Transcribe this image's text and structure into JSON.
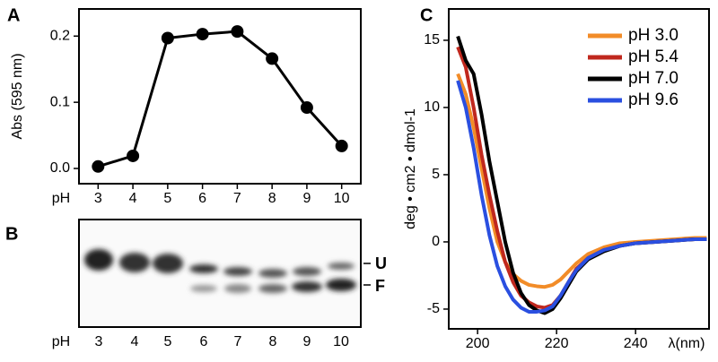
{
  "chart_data": [
    {
      "type": "line",
      "label": "A",
      "y_label": "Abs (595 nm)",
      "x_label": "pH",
      "x": [
        3,
        4,
        5,
        6,
        7,
        8,
        9,
        10
      ],
      "values": [
        0.003,
        0.019,
        0.197,
        0.203,
        0.207,
        0.166,
        0.092,
        0.034
      ],
      "color": "#000000",
      "markers": true,
      "xlim": [
        2.45,
        10.55
      ],
      "ylim": [
        -0.023,
        0.241
      ],
      "xticks": [
        3,
        4,
        5,
        6,
        7,
        8,
        9,
        10
      ],
      "yticks": [
        {
          "value": 0,
          "label": "0.0"
        },
        0.1,
        0.2
      ]
    },
    {
      "type": "line",
      "label": "C",
      "y_label": "deg • cm2 • dmol-1",
      "x_label": "λ(nm)",
      "x": [
        195,
        197,
        199,
        201,
        203,
        205,
        207,
        209,
        211,
        213,
        215,
        217,
        219,
        221,
        223,
        225,
        228,
        232,
        236,
        240,
        245,
        250,
        255,
        258
      ],
      "series": [
        {
          "name": "pH 3.0",
          "color": "#f28c28",
          "values": [
            12.5,
            11,
            8.5,
            5.5,
            2.5,
            0,
            -1.5,
            -2.4,
            -2.9,
            -3.2,
            -3.3,
            -3.35,
            -3.2,
            -2.8,
            -2.2,
            -1.6,
            -0.9,
            -0.4,
            -0.1,
            0,
            0.1,
            0.2,
            0.3,
            0.3
          ]
        },
        {
          "name": "pH 5.4",
          "color": "#c0281e",
          "values": [
            14.5,
            13,
            10,
            6.5,
            3.5,
            0.8,
            -1.5,
            -3,
            -4,
            -4.5,
            -4.8,
            -4.9,
            -4.7,
            -4,
            -3,
            -2,
            -1.2,
            -0.6,
            -0.3,
            -0.1,
            0,
            0.1,
            0.2,
            0.2
          ]
        },
        {
          "name": "pH 7.0",
          "color": "#000000",
          "values": [
            15.3,
            13.5,
            12.5,
            9.5,
            6,
            3,
            0,
            -2.3,
            -3.8,
            -4.7,
            -5.1,
            -5.3,
            -5,
            -4.2,
            -3.2,
            -2.2,
            -1.3,
            -0.7,
            -0.3,
            -0.1,
            0,
            0.1,
            0.2,
            0.2
          ]
        },
        {
          "name": "pH 9.6",
          "color": "#2a4fe0",
          "values": [
            12,
            10,
            7,
            3.5,
            0.5,
            -1.8,
            -3.3,
            -4.3,
            -4.9,
            -5.2,
            -5.2,
            -5.1,
            -4.8,
            -4,
            -3,
            -2.1,
            -1.2,
            -0.6,
            -0.3,
            -0.1,
            0,
            0.1,
            0.2,
            0.2
          ]
        }
      ],
      "xlim": [
        192.7,
        258.6
      ],
      "ylim": [
        -6.47,
        17.33
      ],
      "xticks": [
        200,
        220,
        240
      ],
      "yticks": [
        -5,
        0,
        5,
        10,
        15
      ],
      "legend": "upper right"
    }
  ],
  "gel": {
    "panel": "B",
    "x_label": "pH",
    "lanes": [
      "3",
      "4",
      "5",
      "6",
      "7",
      "8",
      "9",
      "10"
    ],
    "band_labels": [
      "U",
      "F"
    ]
  }
}
